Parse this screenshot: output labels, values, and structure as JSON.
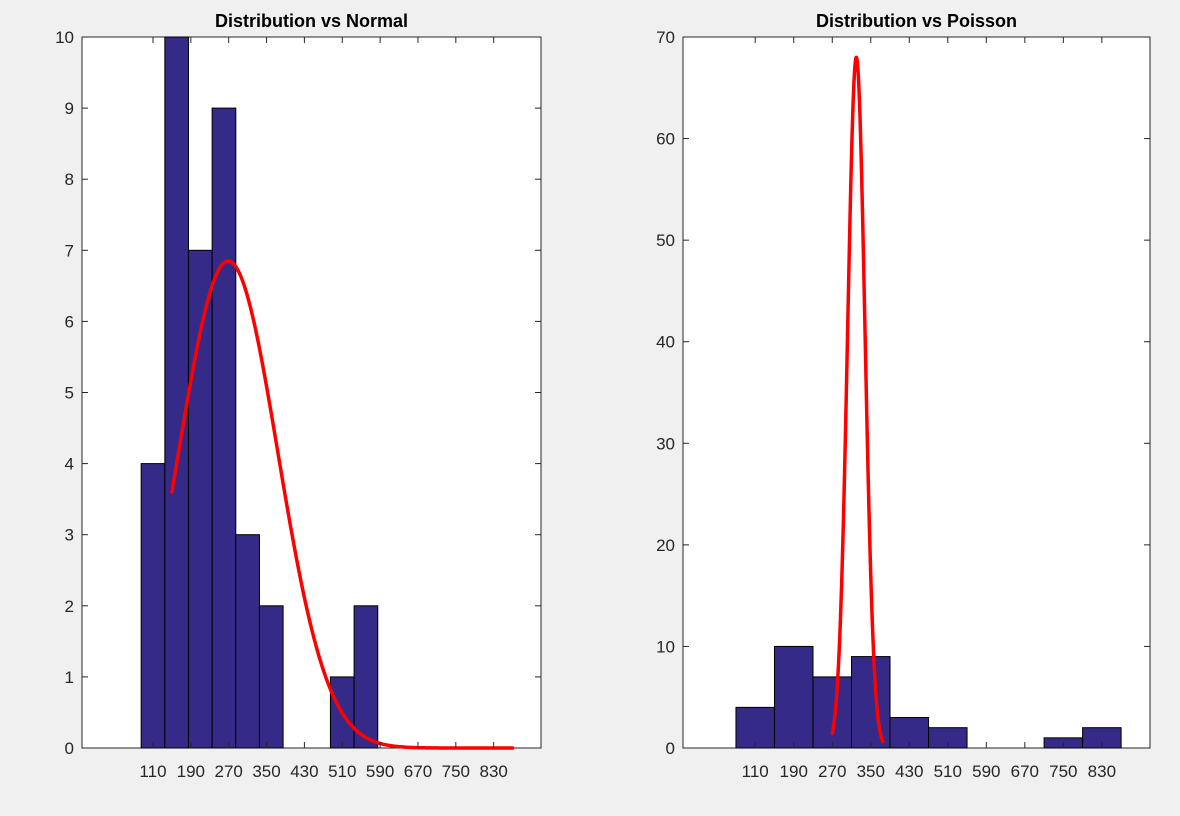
{
  "chart_data": [
    {
      "type": "bar",
      "title": "Distribution vs Normal",
      "xlabel": "",
      "ylabel": "",
      "xlim": [
        -40,
        930
      ],
      "ylim": [
        0,
        10
      ],
      "xticks": [
        110,
        190,
        270,
        350,
        430,
        510,
        590,
        670,
        750,
        830
      ],
      "xtick_labels": [
        "110",
        "190",
        "270",
        "350",
        "430",
        "510",
        "590",
        "670",
        "750",
        "830"
      ],
      "yticks": [
        0,
        1,
        2,
        3,
        4,
        5,
        6,
        7,
        8,
        9,
        10
      ],
      "bars": [
        {
          "x": 110,
          "value": 4
        },
        {
          "x": 160,
          "value": 10
        },
        {
          "x": 210,
          "value": 7
        },
        {
          "x": 260,
          "value": 9
        },
        {
          "x": 310,
          "value": 3
        },
        {
          "x": 360,
          "value": 2
        },
        {
          "x": 410,
          "value": 0
        },
        {
          "x": 460,
          "value": 0
        },
        {
          "x": 510,
          "value": 1
        },
        {
          "x": 560,
          "value": 2
        }
      ],
      "bar_width": 50,
      "fit": {
        "type": "normal",
        "mean": 269,
        "sd": 105,
        "peak": 6.85,
        "x_range": [
          150,
          870
        ]
      },
      "bar_color": "#352a87",
      "fit_color": "#ff0000",
      "grid": false
    },
    {
      "type": "bar",
      "title": "Distribution vs Poisson",
      "xlabel": "",
      "ylabel": "",
      "xlim": [
        -40,
        930
      ],
      "ylim": [
        0,
        70
      ],
      "xticks": [
        110,
        190,
        270,
        350,
        430,
        510,
        590,
        670,
        750,
        830
      ],
      "xtick_labels": [
        "110",
        "190",
        "270",
        "350",
        "430",
        "510",
        "590",
        "670",
        "750",
        "830"
      ],
      "yticks": [
        0,
        10,
        20,
        30,
        40,
        50,
        60,
        70
      ],
      "bars": [
        {
          "x": 110,
          "value": 4
        },
        {
          "x": 190,
          "value": 10
        },
        {
          "x": 270,
          "value": 7
        },
        {
          "x": 350,
          "value": 9
        },
        {
          "x": 430,
          "value": 3
        },
        {
          "x": 510,
          "value": 2
        },
        {
          "x": 590,
          "value": 0
        },
        {
          "x": 670,
          "value": 0
        },
        {
          "x": 750,
          "value": 1
        },
        {
          "x": 830,
          "value": 2
        }
      ],
      "bar_width": 80,
      "fit": {
        "type": "poisson",
        "mean": 320,
        "sd": 18,
        "peak": 68,
        "x_range": [
          270,
          375
        ]
      },
      "bar_color": "#352a87",
      "fit_color": "#ff0000",
      "grid": false
    }
  ]
}
